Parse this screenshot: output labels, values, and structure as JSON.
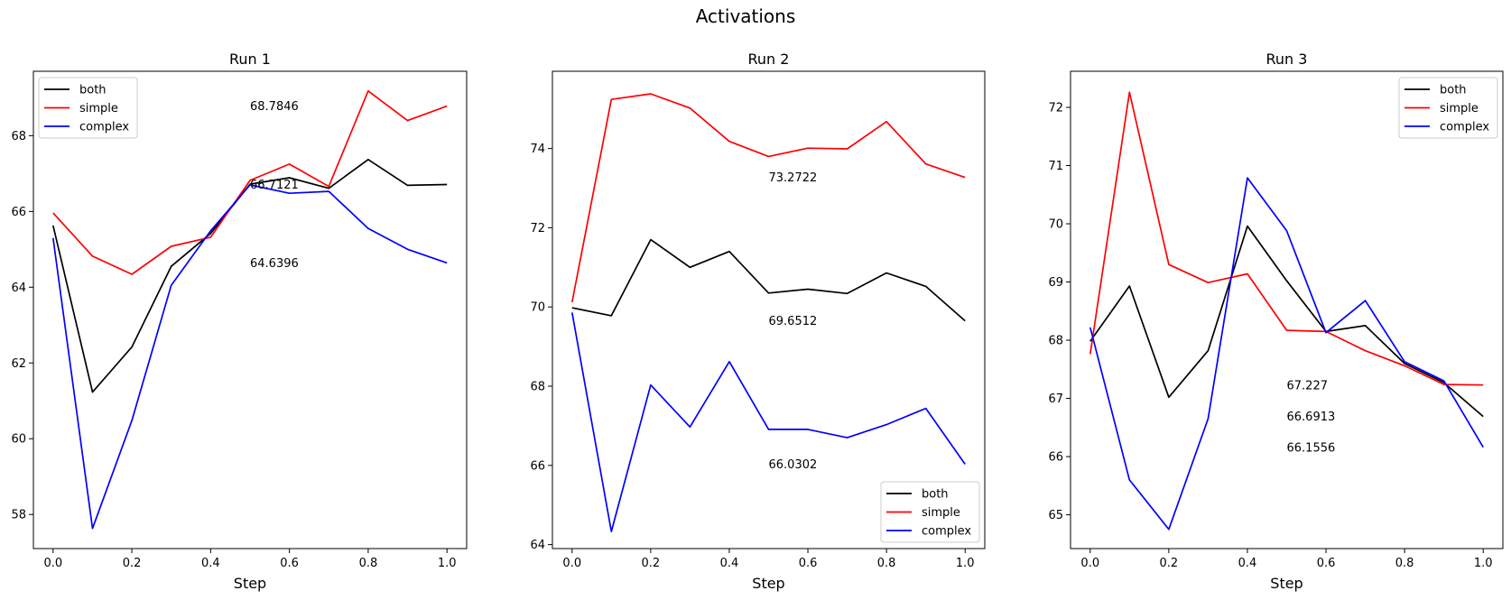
{
  "suptitle": "Activations",
  "chart_data": [
    {
      "type": "line",
      "title": "Run 1",
      "xlabel": "Step",
      "xlim": [
        -0.05,
        1.05
      ],
      "ylim": [
        57.1,
        69.7
      ],
      "xticks": [
        "0.0",
        "0.2",
        "0.4",
        "0.6",
        "0.8",
        "1.0"
      ],
      "yticks": [
        "58",
        "60",
        "62",
        "64",
        "66",
        "68"
      ],
      "x": [
        0.0,
        0.1,
        0.2,
        0.3,
        0.4,
        0.5,
        0.6,
        0.7,
        0.8,
        0.9,
        1.0
      ],
      "legend": "upper-left",
      "series": [
        {
          "name": "both",
          "color": "#000000",
          "values": [
            65.63,
            61.23,
            62.42,
            64.55,
            65.42,
            66.72,
            66.89,
            66.61,
            67.37,
            66.69,
            66.71
          ]
        },
        {
          "name": "simple",
          "color": "#ff0000",
          "values": [
            65.96,
            64.82,
            64.34,
            65.08,
            65.32,
            66.82,
            67.25,
            66.66,
            69.18,
            68.4,
            68.78
          ]
        },
        {
          "name": "complex",
          "color": "#0000ff",
          "values": [
            65.3,
            57.63,
            60.48,
            64.05,
            65.49,
            66.7,
            66.48,
            66.53,
            65.55,
            65.0,
            64.64
          ]
        }
      ],
      "annotations": [
        {
          "x": 0.5,
          "y": 68.7846,
          "text": "68.7846"
        },
        {
          "x": 0.5,
          "y": 66.7121,
          "text": "66.7121"
        },
        {
          "x": 0.5,
          "y": 64.6396,
          "text": "64.6396"
        }
      ]
    },
    {
      "type": "line",
      "title": "Run 2",
      "xlabel": "Step",
      "xlim": [
        -0.05,
        1.05
      ],
      "ylim": [
        63.9,
        75.95
      ],
      "xticks": [
        "0.0",
        "0.2",
        "0.4",
        "0.6",
        "0.8",
        "1.0"
      ],
      "yticks": [
        "64",
        "66",
        "68",
        "70",
        "72",
        "74"
      ],
      "x": [
        0.0,
        0.1,
        0.2,
        0.3,
        0.4,
        0.5,
        0.6,
        0.7,
        0.8,
        0.9,
        1.0
      ],
      "legend": "lower-right",
      "series": [
        {
          "name": "both",
          "color": "#000000",
          "values": [
            69.98,
            69.78,
            71.7,
            71.0,
            71.4,
            70.35,
            70.45,
            70.34,
            70.86,
            70.52,
            69.65
          ]
        },
        {
          "name": "simple",
          "color": "#ff0000",
          "values": [
            70.12,
            75.24,
            75.38,
            75.02,
            74.18,
            73.8,
            74.01,
            73.99,
            74.68,
            73.61,
            73.27
          ]
        },
        {
          "name": "complex",
          "color": "#0000ff",
          "values": [
            69.86,
            64.33,
            68.03,
            66.97,
            68.62,
            66.91,
            66.91,
            66.7,
            67.03,
            67.44,
            66.03
          ]
        }
      ],
      "annotations": [
        {
          "x": 0.5,
          "y": 73.2722,
          "text": "73.2722"
        },
        {
          "x": 0.5,
          "y": 69.6512,
          "text": "69.6512"
        },
        {
          "x": 0.5,
          "y": 66.0302,
          "text": "66.0302"
        }
      ]
    },
    {
      "type": "line",
      "title": "Run 3",
      "xlabel": "Step",
      "xlim": [
        -0.05,
        1.05
      ],
      "ylim": [
        64.42,
        72.62
      ],
      "xticks": [
        "0.0",
        "0.2",
        "0.4",
        "0.6",
        "0.8",
        "1.0"
      ],
      "yticks": [
        "65",
        "66",
        "67",
        "68",
        "69",
        "70",
        "71",
        "72"
      ],
      "x": [
        0.0,
        0.1,
        0.2,
        0.3,
        0.4,
        0.5,
        0.6,
        0.7,
        0.8,
        0.9,
        1.0
      ],
      "legend": "upper-right",
      "series": [
        {
          "name": "both",
          "color": "#000000",
          "values": [
            67.98,
            68.93,
            67.02,
            67.82,
            69.96,
            69.02,
            68.15,
            68.25,
            67.6,
            67.27,
            66.69
          ]
        },
        {
          "name": "simple",
          "color": "#ff0000",
          "values": [
            67.76,
            72.26,
            69.3,
            68.99,
            69.14,
            68.17,
            68.15,
            67.82,
            67.56,
            67.24,
            67.23
          ]
        },
        {
          "name": "complex",
          "color": "#0000ff",
          "values": [
            68.22,
            65.6,
            64.75,
            66.65,
            70.79,
            69.88,
            68.13,
            68.68,
            67.63,
            67.3,
            66.16
          ]
        }
      ],
      "annotations": [
        {
          "x": 0.5,
          "y": 67.227,
          "text": "67.227"
        },
        {
          "x": 0.5,
          "y": 66.6913,
          "text": "66.6913"
        },
        {
          "x": 0.5,
          "y": 66.1556,
          "text": "66.1556"
        }
      ]
    }
  ]
}
